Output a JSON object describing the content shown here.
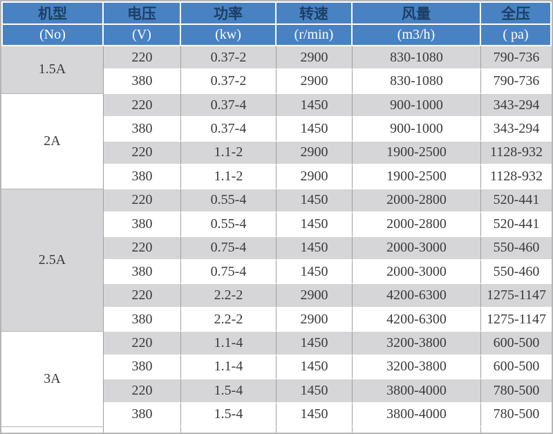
{
  "colors": {
    "header_blue": "#4882c3",
    "header_title_text": "#1c3f66",
    "header_unit_text": "#ffffff",
    "row_gray": "#d6d6d8",
    "row_white": "#ffffff",
    "body_text": "#3a3a3a",
    "grid_line": "#9e9e9e",
    "group_line": "#b4b4b4",
    "outer_border": "#b5b5b5"
  },
  "table": {
    "columns": [
      {
        "title": "机型",
        "unit": "(No)"
      },
      {
        "title": "电压",
        "unit": "(V)"
      },
      {
        "title": "功率",
        "unit": "(kw)"
      },
      {
        "title": "转速",
        "unit": "(r/min)"
      },
      {
        "title": "风量",
        "unit": "(m3/h)"
      },
      {
        "title": "全压",
        "unit": "( pa)"
      }
    ],
    "groups": [
      {
        "model": "1.5A",
        "rows": [
          [
            "220",
            "0.37-2",
            "2900",
            "830-1080",
            "790-736"
          ],
          [
            "380",
            "0.37-2",
            "2900",
            "830-1080",
            "790-736"
          ]
        ]
      },
      {
        "model": "2A",
        "rows": [
          [
            "220",
            "0.37-4",
            "1450",
            "900-1000",
            "343-294"
          ],
          [
            "380",
            "0.37-4",
            "1450",
            "900-1000",
            "343-294"
          ],
          [
            "220",
            "1.1-2",
            "2900",
            "1900-2500",
            "1128-932"
          ],
          [
            "380",
            "1.1-2",
            "2900",
            "1900-2500",
            "1128-932"
          ]
        ]
      },
      {
        "model": "2.5A",
        "rows": [
          [
            "220",
            "0.55-4",
            "1450",
            "2000-2800",
            "520-441"
          ],
          [
            "380",
            "0.55-4",
            "1450",
            "2000-2800",
            "520-441"
          ],
          [
            "220",
            "0.75-4",
            "1450",
            "2000-3000",
            "550-460"
          ],
          [
            "380",
            "0.75-4",
            "1450",
            "2000-3000",
            "550-460"
          ],
          [
            "220",
            "2.2-2",
            "2900",
            "4200-6300",
            "1275-1147"
          ],
          [
            "380",
            "2.2-2",
            "2900",
            "4200-6300",
            "1275-1147"
          ]
        ]
      },
      {
        "model": "3A",
        "rows": [
          [
            "220",
            "1.1-4",
            "1450",
            "3200-3800",
            "600-500"
          ],
          [
            "380",
            "1.1-4",
            "1450",
            "3200-3800",
            "600-500"
          ],
          [
            "220",
            "1.5-4",
            "1450",
            "3800-4000",
            "780-500"
          ],
          [
            "380",
            "1.5-4",
            "1450",
            "3800-4000",
            "780-500"
          ]
        ]
      }
    ]
  },
  "chart_data": {
    "type": "table",
    "columns": [
      "机型 (No)",
      "电压 (V)",
      "功率 (kw)",
      "转速 (r/min)",
      "风量 (m3/h)",
      "全压 ( pa)"
    ],
    "rows": [
      [
        "1.5A",
        "220",
        "0.37-2",
        "2900",
        "830-1080",
        "790-736"
      ],
      [
        "1.5A",
        "380",
        "0.37-2",
        "2900",
        "830-1080",
        "790-736"
      ],
      [
        "2A",
        "220",
        "0.37-4",
        "1450",
        "900-1000",
        "343-294"
      ],
      [
        "2A",
        "380",
        "0.37-4",
        "1450",
        "900-1000",
        "343-294"
      ],
      [
        "2A",
        "220",
        "1.1-2",
        "2900",
        "1900-2500",
        "1128-932"
      ],
      [
        "2A",
        "380",
        "1.1-2",
        "2900",
        "1900-2500",
        "1128-932"
      ],
      [
        "2.5A",
        "220",
        "0.55-4",
        "1450",
        "2000-2800",
        "520-441"
      ],
      [
        "2.5A",
        "380",
        "0.55-4",
        "1450",
        "2000-2800",
        "520-441"
      ],
      [
        "2.5A",
        "220",
        "0.75-4",
        "1450",
        "2000-3000",
        "550-460"
      ],
      [
        "2.5A",
        "380",
        "0.75-4",
        "1450",
        "2000-3000",
        "550-460"
      ],
      [
        "2.5A",
        "220",
        "2.2-2",
        "2900",
        "4200-6300",
        "1275-1147"
      ],
      [
        "2.5A",
        "380",
        "2.2-2",
        "2900",
        "4200-6300",
        "1275-1147"
      ],
      [
        "3A",
        "220",
        "1.1-4",
        "1450",
        "3200-3800",
        "600-500"
      ],
      [
        "3A",
        "380",
        "1.1-4",
        "1450",
        "3200-3800",
        "600-500"
      ],
      [
        "3A",
        "220",
        "1.5-4",
        "1450",
        "3800-4000",
        "780-500"
      ],
      [
        "3A",
        "380",
        "1.5-4",
        "1450",
        "3800-4000",
        "780-500"
      ]
    ]
  }
}
